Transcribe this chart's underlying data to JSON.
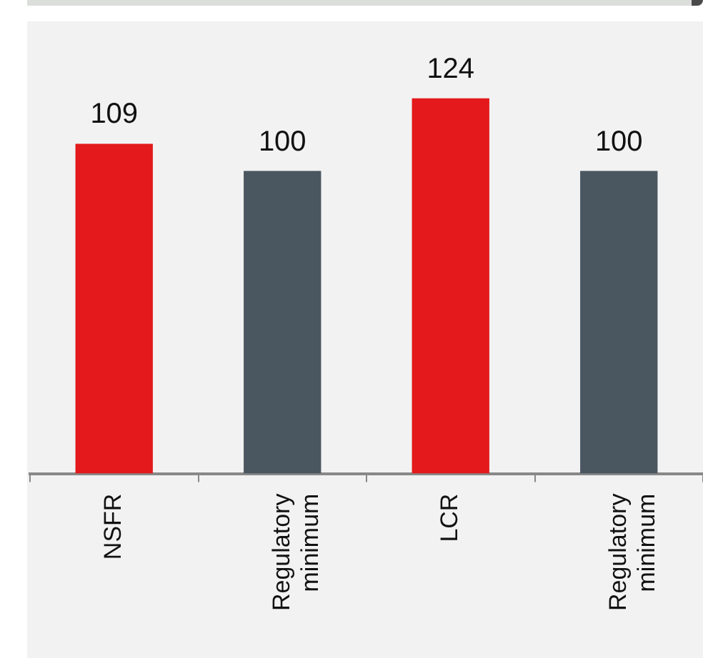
{
  "chart_data": {
    "type": "bar",
    "categories": [
      "NSFR",
      "Regulatory minimum",
      "LCR",
      "Regulatory minimum"
    ],
    "values": [
      109,
      100,
      124,
      100
    ],
    "colors": [
      "#e3191b",
      "#4a5660",
      "#e3191b",
      "#4a5660"
    ],
    "data_labels": true,
    "grid": false,
    "legend": false,
    "tick_labels": "x"
  }
}
